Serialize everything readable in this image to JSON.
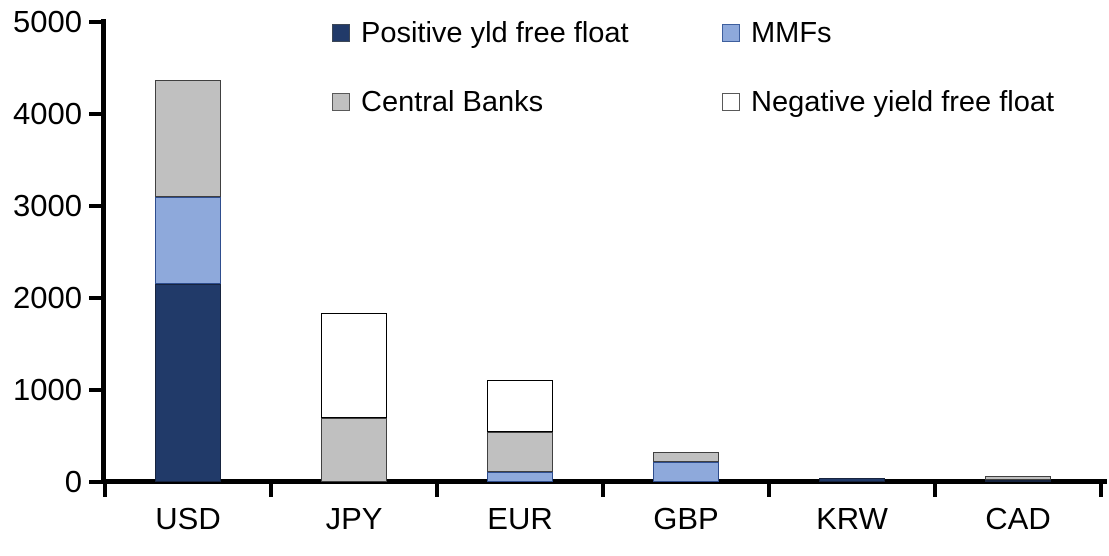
{
  "legend": {
    "items": [
      {
        "key": "positive-yld-free-float",
        "label": "Positive yld free float",
        "color": "#213A69",
        "border": "#3d4756"
      },
      {
        "key": "mmfs",
        "label": "MMFs",
        "color": "#8EA9DB",
        "border": "#3E5F9E"
      },
      {
        "key": "central-banks",
        "label": "Central Banks",
        "color": "#C0C0C0",
        "border": "#595959"
      },
      {
        "key": "negative-yield-free-float",
        "label": "Negative yield free float",
        "color": "#FFFFFF",
        "border": "#595959"
      }
    ]
  },
  "chart_data": {
    "type": "bar",
    "stacked": true,
    "title": "",
    "xlabel": "",
    "ylabel": "",
    "categories": [
      "USD",
      "JPY",
      "EUR",
      "GBP",
      "KRW",
      "CAD"
    ],
    "series": [
      {
        "name": "Positive yld free float",
        "key": "positive-yld-free-float",
        "color": "#213A69",
        "border": "#17243f",
        "values": [
          2150,
          0,
          0,
          0,
          40,
          25
        ]
      },
      {
        "name": "MMFs",
        "key": "mmfs",
        "color": "#8EA9DB",
        "border": "#2E4D8E",
        "values": [
          950,
          0,
          110,
          220,
          0,
          0
        ]
      },
      {
        "name": "Central Banks",
        "key": "central-banks",
        "color": "#C0C0C0",
        "border": "#404040",
        "values": [
          1270,
          700,
          430,
          110,
          0,
          35
        ]
      },
      {
        "name": "Negative yield free float",
        "key": "negative-yield-free-float",
        "color": "#FFFFFF",
        "border": "#000000",
        "values": [
          0,
          1140,
          570,
          0,
          0,
          0
        ]
      }
    ],
    "totals": [
      4370,
      1840,
      1110,
      330,
      40,
      60
    ],
    "ylim": [
      0,
      5000
    ],
    "yticks": [
      0,
      1000,
      2000,
      3000,
      4000,
      5000
    ],
    "grid": false,
    "legend_position": "top-inside",
    "axis_color": "#000000"
  }
}
